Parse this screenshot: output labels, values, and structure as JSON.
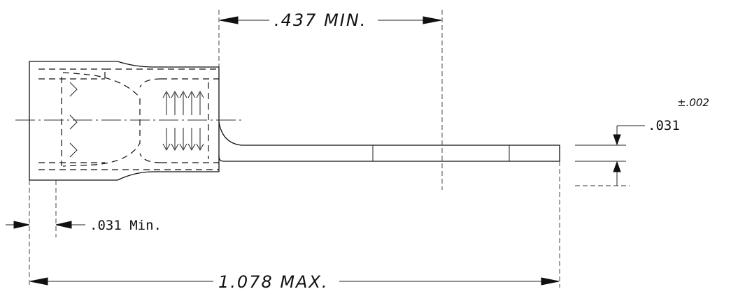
{
  "dimensions": {
    "top_length": ".437 MIN.",
    "thickness": ".031",
    "thickness_tolerance": "±.002",
    "insulation_setback": ".031 Min.",
    "overall_length": "1.078 MAX."
  }
}
